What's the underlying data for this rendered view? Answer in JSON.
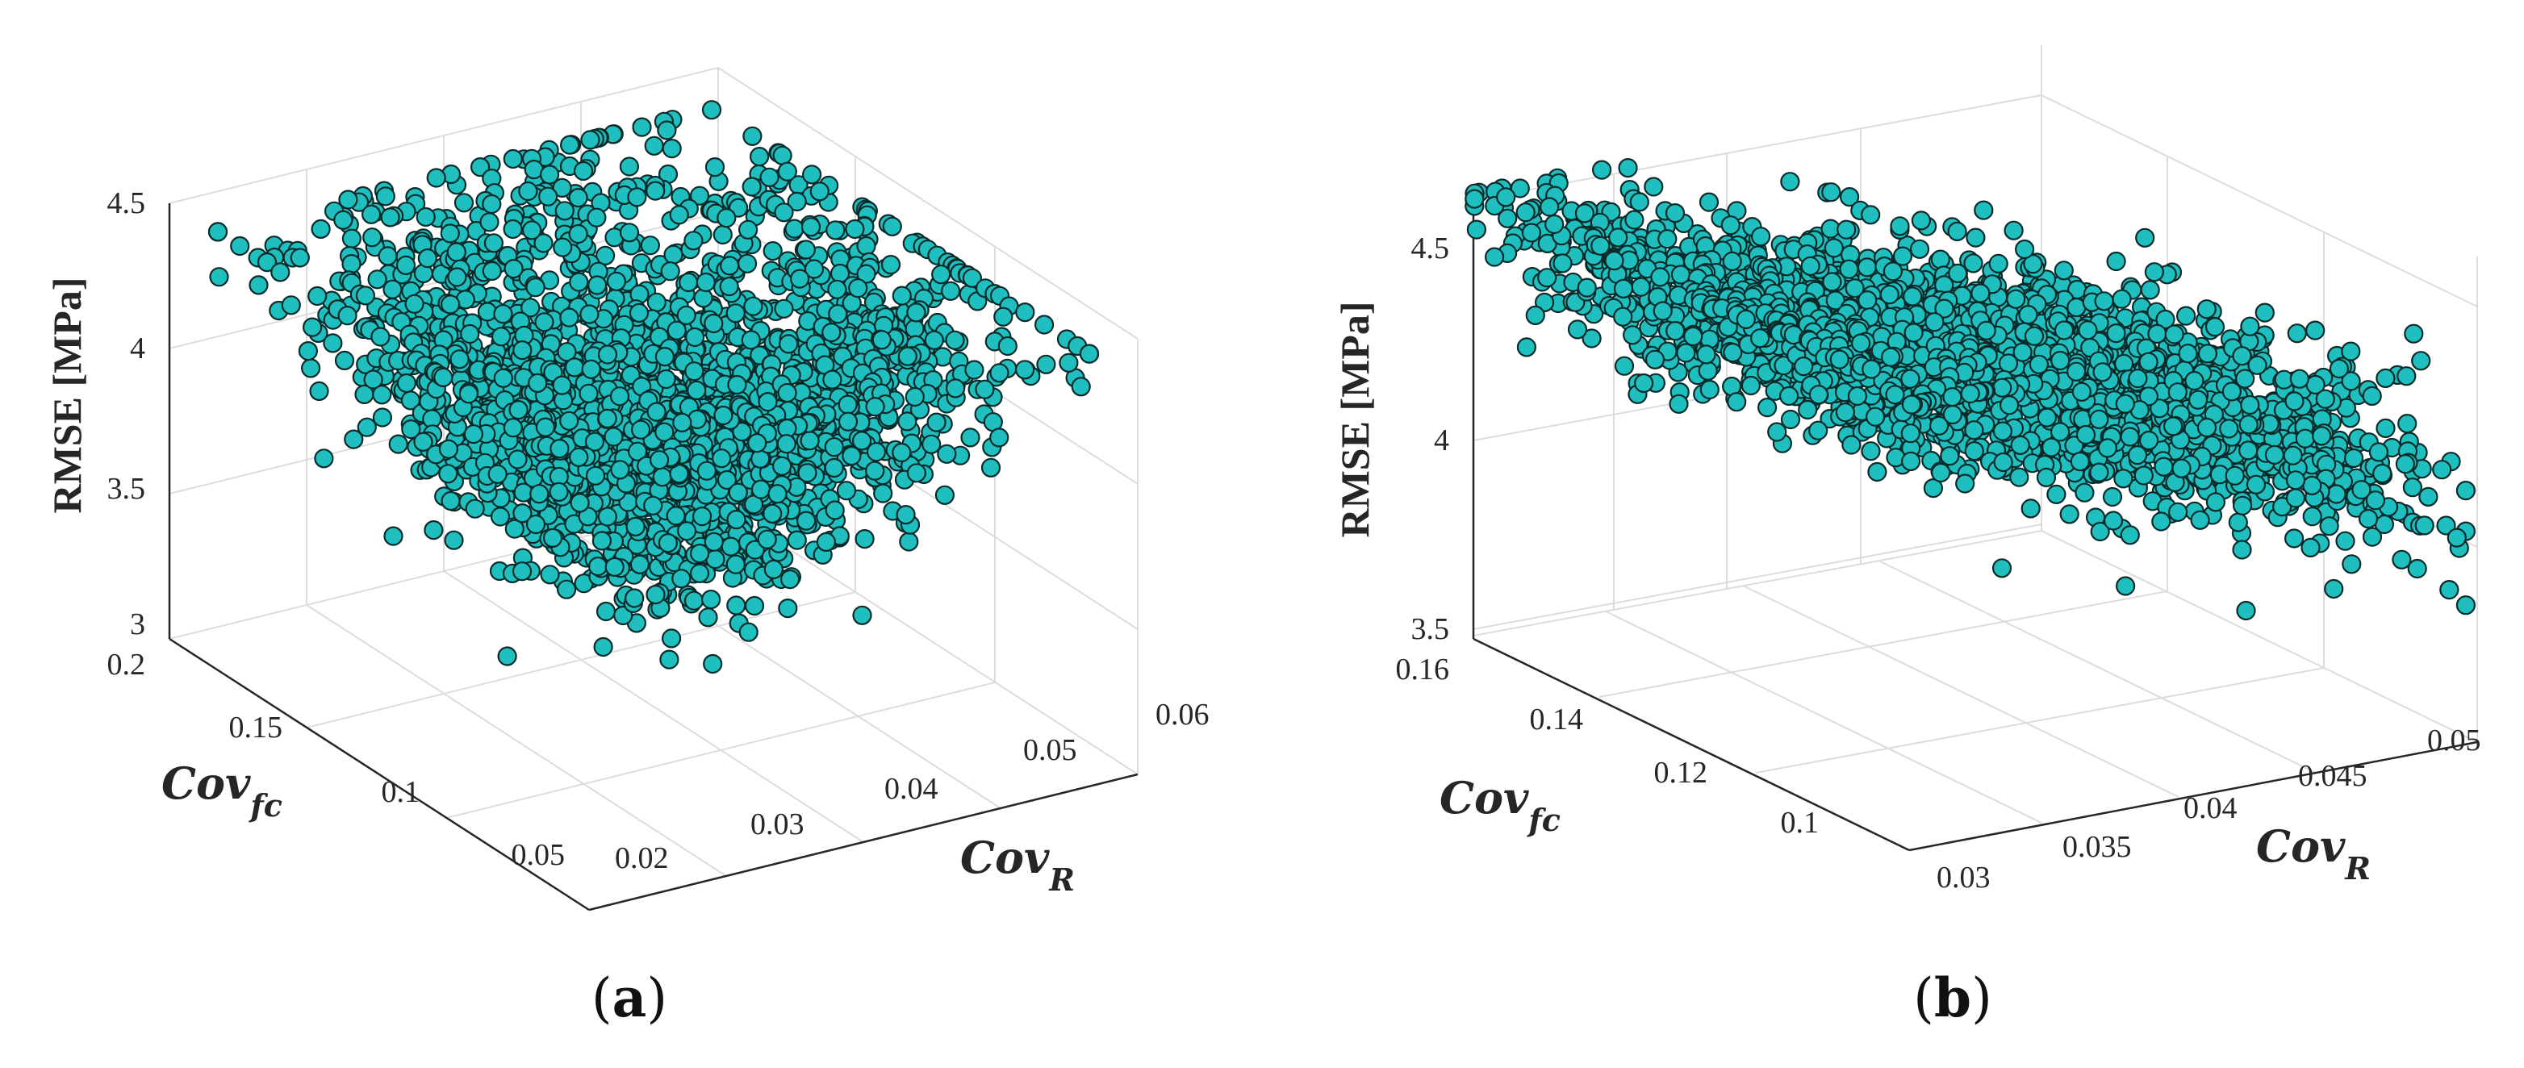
{
  "colors": {
    "marker_fill": "#1fbfbf",
    "marker_edge": "#0a2a2a",
    "axis": "#262626",
    "grid": "#dcdcdc"
  },
  "chart_data": [
    {
      "type": "scatter",
      "panel_label": "a",
      "zlabel": "RMSE [MPa]",
      "xlabel": {
        "base": "Cov",
        "sub": "R"
      },
      "ylabel": {
        "base": "Cov",
        "sub": "fc"
      },
      "xlim": [
        0.02,
        0.06
      ],
      "ylim": [
        0.05,
        0.2
      ],
      "zlim": [
        3,
        4.5
      ],
      "xticks": [
        "0.02",
        "0.03",
        "0.04",
        "0.05",
        "0.06"
      ],
      "yticks": [
        "0.05",
        "0.1",
        "0.15",
        "0.2"
      ],
      "zticks": [
        "3",
        "3.5",
        "4",
        "4.5"
      ],
      "grid": true,
      "point_count": 2600,
      "cluster": {
        "x_range": [
          0.02,
          0.06
        ],
        "y_range": [
          0.05,
          0.2
        ],
        "z_range": [
          3.1,
          4.45
        ],
        "shape": "dense blob, RMSE lowest near centre of both parameters"
      }
    },
    {
      "type": "scatter",
      "panel_label": "b",
      "zlabel": "RMSE [MPa]",
      "xlabel": {
        "base": "Cov",
        "sub": "R"
      },
      "ylabel": {
        "base": "Cov",
        "sub": "fc"
      },
      "xlim": [
        0.03,
        0.05
      ],
      "ylim": [
        0.09,
        0.16
      ],
      "zlim": [
        3.5,
        4.6
      ],
      "xticks": [
        "0.03",
        "0.035",
        "0.04",
        "0.045",
        "0.05"
      ],
      "yticks": [
        "0.1",
        "0.12",
        "0.14",
        "0.16"
      ],
      "zticks": [
        "3.5",
        "4",
        "4.5"
      ],
      "grid": true,
      "point_count": 2600,
      "cluster": {
        "x_range": [
          0.03,
          0.05
        ],
        "y_range": [
          0.09,
          0.16
        ],
        "z_range": [
          3.55,
          4.5
        ],
        "shape": "wide slab, RMSE decreasing toward high Cov_R"
      }
    }
  ]
}
